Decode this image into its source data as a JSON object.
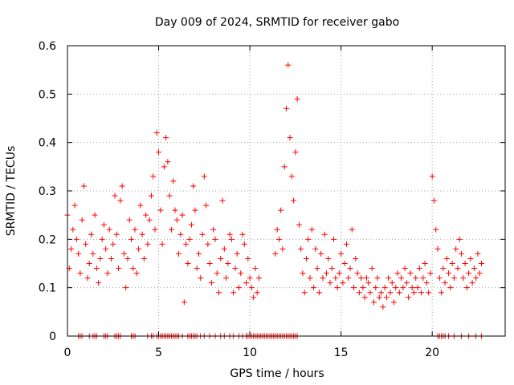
{
  "chart_data": {
    "type": "scatter",
    "title": "Day 009 of 2024, SRMTID for receiver gabo",
    "xlabel": "GPS time / hours",
    "ylabel": "SRMTID / TECUs",
    "xlim": [
      0,
      24
    ],
    "ylim": [
      0,
      0.6
    ],
    "xticks": [
      0,
      5,
      10,
      15,
      20
    ],
    "xtick_labels": [
      "0",
      "5",
      "10",
      "15",
      "20"
    ],
    "yticks": [
      0,
      0.1,
      0.2,
      0.3,
      0.4,
      0.5,
      0.6
    ],
    "ytick_labels": [
      "0",
      "0.1",
      "0.2",
      "0.3",
      "0.4",
      "0.5",
      "0.6"
    ],
    "grid": true,
    "marker": "+",
    "series": [
      {
        "name": "SRMTID",
        "color": "#ff0000",
        "x": [
          0.0,
          0.1,
          0.2,
          0.3,
          0.4,
          0.5,
          0.6,
          0.7,
          0.8,
          0.9,
          1.0,
          1.1,
          1.2,
          1.3,
          1.4,
          1.5,
          1.6,
          1.7,
          1.8,
          1.9,
          2.0,
          2.1,
          2.2,
          2.3,
          2.4,
          2.5,
          2.6,
          2.7,
          2.8,
          2.9,
          3.0,
          3.1,
          3.2,
          3.3,
          3.4,
          3.5,
          3.6,
          3.7,
          3.8,
          3.9,
          4.0,
          4.1,
          4.2,
          4.3,
          4.4,
          4.5,
          4.6,
          4.7,
          4.8,
          4.9,
          5.0,
          5.1,
          5.2,
          5.3,
          5.4,
          5.5,
          5.6,
          5.7,
          5.8,
          5.9,
          6.0,
          6.1,
          6.2,
          6.3,
          6.4,
          6.5,
          6.6,
          6.7,
          6.8,
          6.9,
          7.0,
          7.1,
          7.2,
          7.3,
          7.4,
          7.5,
          7.6,
          7.7,
          7.8,
          7.9,
          8.0,
          8.1,
          8.2,
          8.3,
          8.4,
          8.5,
          8.6,
          8.7,
          8.8,
          8.9,
          9.0,
          9.1,
          9.2,
          9.3,
          9.4,
          9.5,
          9.6,
          9.7,
          9.8,
          9.9,
          10.0,
          10.1,
          10.2,
          10.3,
          10.4,
          10.5,
          11.4,
          11.5,
          11.6,
          11.7,
          11.8,
          11.9,
          12.0,
          12.1,
          12.2,
          12.3,
          12.4,
          12.5,
          12.6,
          12.7,
          12.8,
          12.9,
          13.0,
          13.1,
          13.2,
          13.3,
          13.4,
          13.5,
          13.6,
          13.7,
          13.8,
          13.9,
          14.0,
          14.1,
          14.2,
          14.3,
          14.4,
          14.5,
          14.6,
          14.7,
          14.8,
          14.9,
          15.0,
          15.1,
          15.2,
          15.3,
          15.4,
          15.5,
          15.6,
          15.7,
          15.8,
          15.9,
          16.0,
          16.1,
          16.2,
          16.3,
          16.4,
          16.5,
          16.6,
          16.7,
          16.8,
          16.9,
          17.0,
          17.1,
          17.2,
          17.3,
          17.4,
          17.5,
          17.6,
          17.7,
          17.8,
          17.9,
          18.0,
          18.1,
          18.2,
          18.3,
          18.4,
          18.5,
          18.6,
          18.7,
          18.8,
          18.9,
          19.0,
          19.1,
          19.2,
          19.3,
          19.4,
          19.5,
          19.6,
          19.7,
          19.8,
          19.9,
          20.0,
          20.1,
          20.2,
          20.3,
          20.4,
          20.5,
          20.6,
          20.7,
          20.8,
          20.9,
          21.0,
          21.1,
          21.2,
          21.3,
          21.4,
          21.5,
          21.6,
          21.7,
          21.8,
          21.9,
          22.0,
          22.1,
          22.2,
          22.3,
          22.4,
          22.5,
          22.6,
          22.7
        ],
        "y": [
          0.25,
          0.14,
          0.18,
          0.22,
          0.27,
          0.2,
          0.17,
          0.13,
          0.24,
          0.31,
          0.19,
          0.12,
          0.15,
          0.21,
          0.17,
          0.25,
          0.14,
          0.11,
          0.16,
          0.2,
          0.23,
          0.18,
          0.13,
          0.22,
          0.16,
          0.19,
          0.29,
          0.21,
          0.14,
          0.28,
          0.31,
          0.17,
          0.1,
          0.16,
          0.24,
          0.2,
          0.14,
          0.22,
          0.13,
          0.18,
          0.27,
          0.21,
          0.16,
          0.25,
          0.19,
          0.24,
          0.29,
          0.33,
          0.22,
          0.42,
          0.38,
          0.26,
          0.19,
          0.35,
          0.41,
          0.36,
          0.29,
          0.22,
          0.32,
          0.26,
          0.24,
          0.17,
          0.21,
          0.25,
          0.07,
          0.19,
          0.15,
          0.2,
          0.23,
          0.31,
          0.26,
          0.14,
          0.17,
          0.12,
          0.21,
          0.33,
          0.27,
          0.19,
          0.15,
          0.11,
          0.22,
          0.2,
          0.13,
          0.09,
          0.16,
          0.28,
          0.18,
          0.12,
          0.15,
          0.21,
          0.2,
          0.09,
          0.14,
          0.17,
          0.1,
          0.13,
          0.21,
          0.19,
          0.11,
          0.16,
          0.12,
          0.1,
          0.08,
          0.14,
          0.09,
          0.12,
          0.17,
          0.22,
          0.2,
          0.26,
          0.18,
          0.35,
          0.47,
          0.56,
          0.41,
          0.33,
          0.28,
          0.38,
          0.49,
          0.23,
          0.18,
          0.13,
          0.09,
          0.16,
          0.2,
          0.12,
          0.22,
          0.1,
          0.18,
          0.14,
          0.09,
          0.17,
          0.12,
          0.21,
          0.13,
          0.16,
          0.11,
          0.14,
          0.2,
          0.12,
          0.1,
          0.13,
          0.17,
          0.11,
          0.15,
          0.19,
          0.12,
          0.14,
          0.22,
          0.1,
          0.16,
          0.13,
          0.09,
          0.12,
          0.1,
          0.08,
          0.12,
          0.11,
          0.09,
          0.14,
          0.07,
          0.1,
          0.12,
          0.08,
          0.09,
          0.06,
          0.1,
          0.08,
          0.12,
          0.09,
          0.11,
          0.07,
          0.1,
          0.13,
          0.09,
          0.12,
          0.1,
          0.14,
          0.11,
          0.08,
          0.13,
          0.1,
          0.09,
          0.12,
          0.1,
          0.14,
          0.09,
          0.12,
          0.15,
          0.11,
          0.09,
          0.13,
          0.33,
          0.28,
          0.22,
          0.18,
          0.12,
          0.09,
          0.14,
          0.11,
          0.16,
          0.13,
          0.1,
          0.15,
          0.12,
          0.18,
          0.14,
          0.2,
          0.17,
          0.12,
          0.15,
          0.1,
          0.13,
          0.16,
          0.11,
          0.14,
          0.12,
          0.17,
          0.13,
          0.15
        ]
      }
    ],
    "zero_markers_x": [
      0.6,
      0.7,
      0.8,
      1.2,
      1.4,
      1.5,
      1.6,
      2.0,
      2.1,
      2.2,
      2.6,
      2.7,
      2.8,
      2.9,
      3.5,
      3.6,
      3.7,
      4.4,
      4.6,
      4.7,
      4.9,
      5.0,
      5.1,
      5.2,
      5.3,
      5.4,
      5.5,
      5.6,
      5.7,
      5.8,
      5.9,
      6.0,
      6.1,
      6.3,
      6.6,
      6.7,
      6.8,
      6.9,
      7.0,
      7.1,
      7.3,
      7.5,
      7.8,
      8.1,
      8.4,
      8.6,
      8.9,
      9.1,
      9.4,
      9.6,
      9.8,
      9.9,
      10.0,
      10.1,
      10.2,
      10.3,
      10.4,
      10.5,
      10.6,
      10.7,
      10.8,
      10.9,
      11.0,
      11.1,
      11.2,
      11.3,
      11.4,
      11.5,
      11.6,
      11.7,
      11.8,
      11.9,
      12.0,
      12.1,
      12.2,
      12.3,
      12.4,
      12.5,
      12.6,
      20.3,
      20.4,
      20.5,
      20.6,
      20.7,
      20.9,
      21.2,
      21.6,
      22.0,
      22.4,
      22.7
    ]
  }
}
